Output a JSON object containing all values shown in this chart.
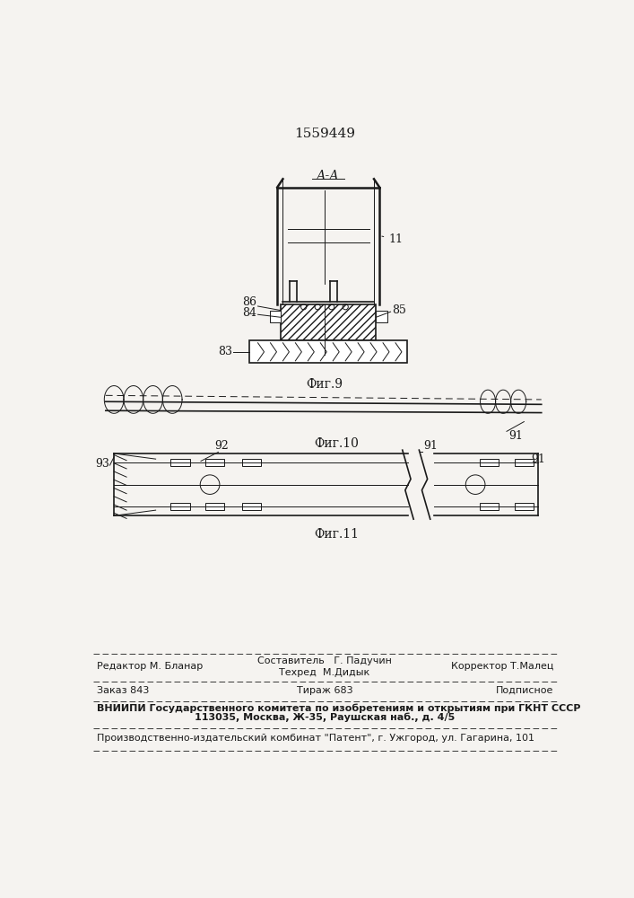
{
  "patent_number": "1559449",
  "aa_label": "А-А",
  "fig9_caption": "Фиг.9",
  "fig10_caption": "Фиг.10",
  "fig11_caption": "Фиг.11",
  "bg_color": "#f5f3f0",
  "line_color": "#1a1a1a",
  "footer_col1_row1": "Редактор М. Бланар",
  "footer_col2_row1a": "Составитель   Г. Падучин",
  "footer_col2_row1b": "Техред  М.Дидык",
  "footer_col3_row1": "Корректор Т.Малец",
  "footer_col1_row2": "Заказ 843",
  "footer_col2_row2": "Тираж 683",
  "footer_col3_row2": "Подписное",
  "footer_row3": "ВНИИПИ Государственного комитета по изобретениям и открытиям при ГКНТ СССР",
  "footer_row4": "113035, Москва, Ж-35, Раушская наб., д. 4/5",
  "footer_row5": "Производственно-издательский комбинат \"Патент\", г. Ужгород, ул. Гагарина, 101"
}
